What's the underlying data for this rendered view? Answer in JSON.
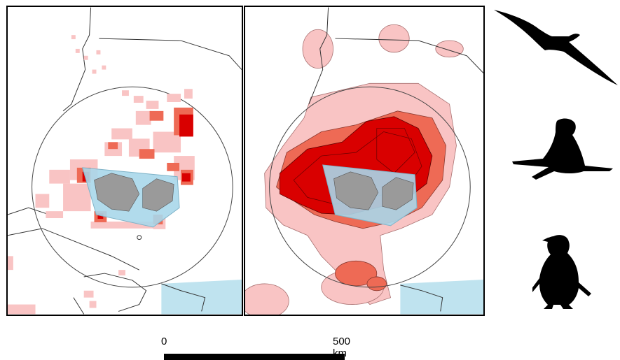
{
  "scale": {
    "start_label": "0",
    "end_label": "500 km"
  },
  "colors": {
    "high_use": "#d90000",
    "medium_use": "#ee6a55",
    "low_use": "#f9c4c4",
    "zone": "#a8d7ea",
    "land": "#9a9a9a",
    "outline": "#333333"
  },
  "icons": [
    "albatross-icon",
    "seal-icon",
    "penguin-icon"
  ]
}
